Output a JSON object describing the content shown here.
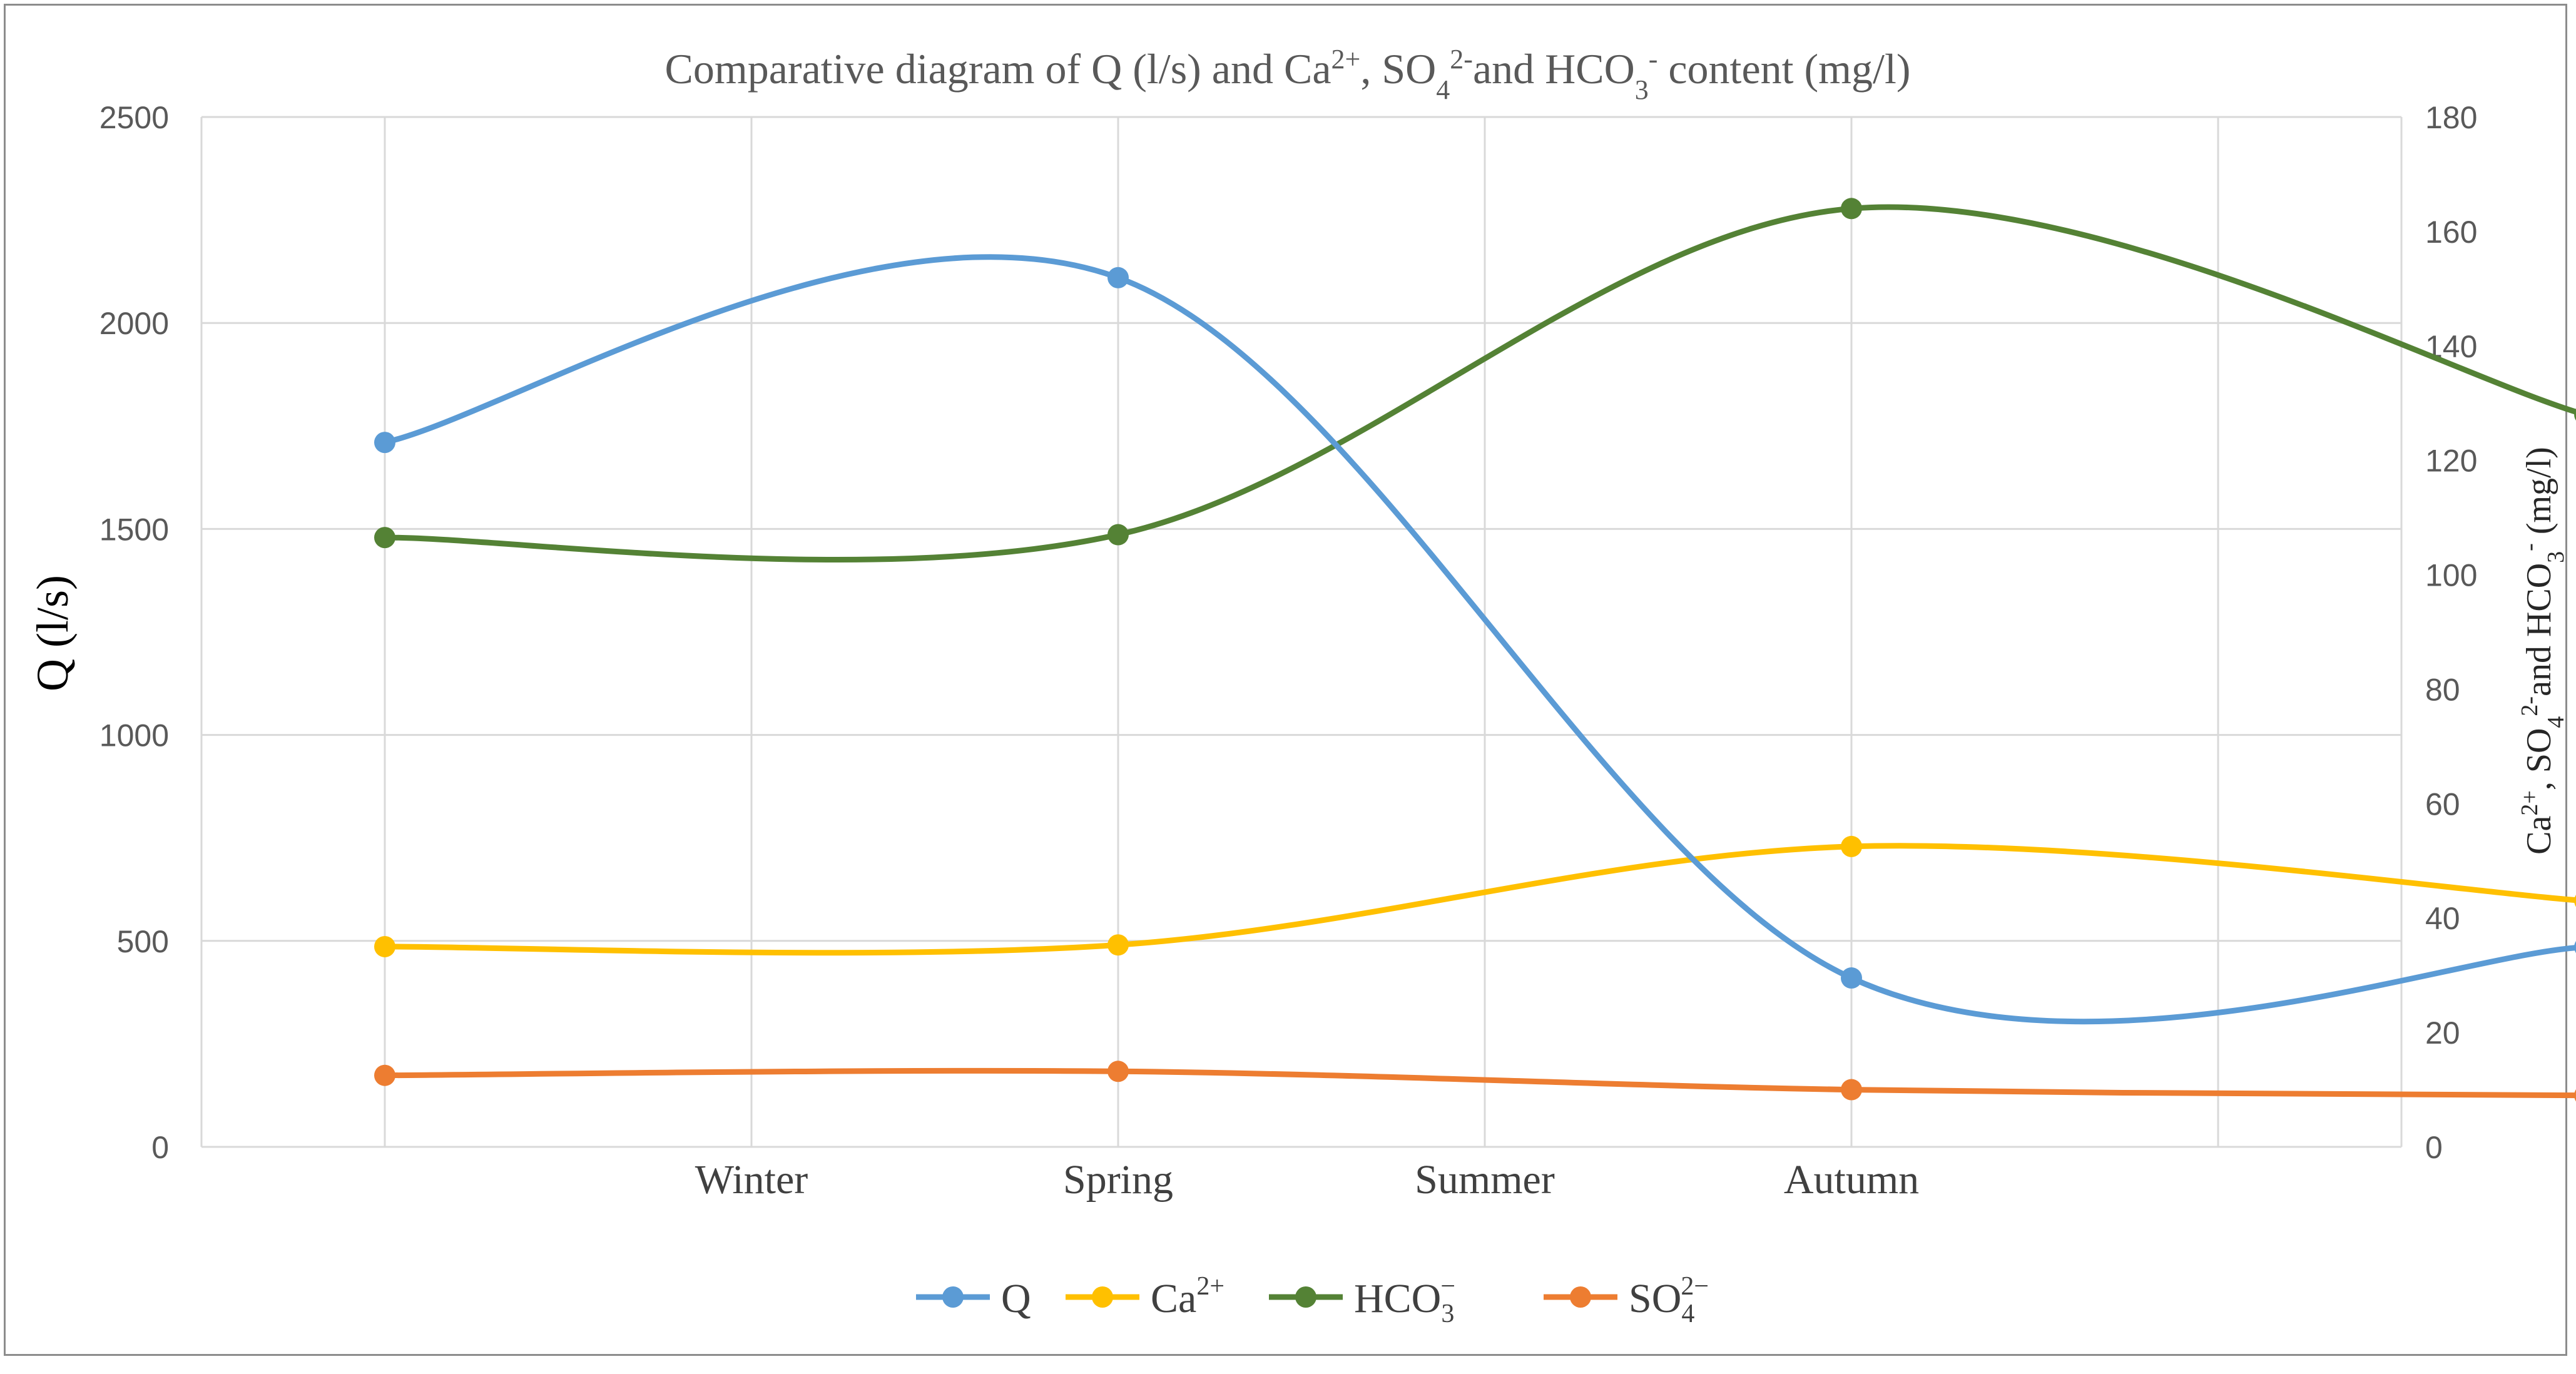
{
  "chart_data": {
    "type": "line",
    "smooth": true,
    "title": {
      "prefix": "Comparative diagram of Q (l/s) and Ca",
      "ca_sup": "2+",
      "so4_pre": ", SO",
      "so4_sub": "4",
      "so4_sup": "2-",
      "hco3_pre": "and HCO",
      "hco3_sub": "3",
      "hco3_sup": "-",
      "suffix": " content (mg/l)"
    },
    "xlabel": "",
    "categories": [
      "Winter",
      "Spring",
      "Summer",
      "Autumn"
    ],
    "y_left": {
      "label": "Q (l/s)",
      "range": [
        0,
        2500
      ],
      "ticks": [
        0,
        500,
        1000,
        1500,
        2000,
        2500
      ]
    },
    "y_right": {
      "label": {
        "ca": "Ca",
        "ca_sup": "2+",
        "so4_pre": ", SO",
        "so4_sub": "4",
        "so4_sup": "2-",
        "hco3_pre": "and HCO",
        "hco3_sub": "3",
        "hco3_sup": "-",
        "suffix": " (mg/l)"
      },
      "range": [
        0,
        180
      ],
      "ticks": [
        0,
        20,
        40,
        60,
        80,
        100,
        120,
        140,
        160,
        180
      ]
    },
    "series_x": [
      0,
      2,
      4,
      6
    ],
    "series": [
      {
        "name": "Q",
        "sub": "",
        "sup": "",
        "axis": "left",
        "color": "#5b9bd5",
        "values": [
          1710,
          2110,
          410,
          485
        ]
      },
      {
        "name": "Ca",
        "sub": "",
        "sup": "2+",
        "axis": "right",
        "color": "#ffc000",
        "values": [
          35,
          35.3,
          52.5,
          43
        ]
      },
      {
        "name": "HCO",
        "sub": "3",
        "sup": "−",
        "axis": "right",
        "color": "#548235",
        "values": [
          106.5,
          107,
          164,
          128
        ]
      },
      {
        "name": "SO",
        "sub": "4",
        "sup": "2−",
        "axis": "right",
        "color": "#ed7d31",
        "values": [
          12.5,
          13.2,
          10,
          9
        ]
      }
    ],
    "legend": "bottom",
    "grid": true
  }
}
